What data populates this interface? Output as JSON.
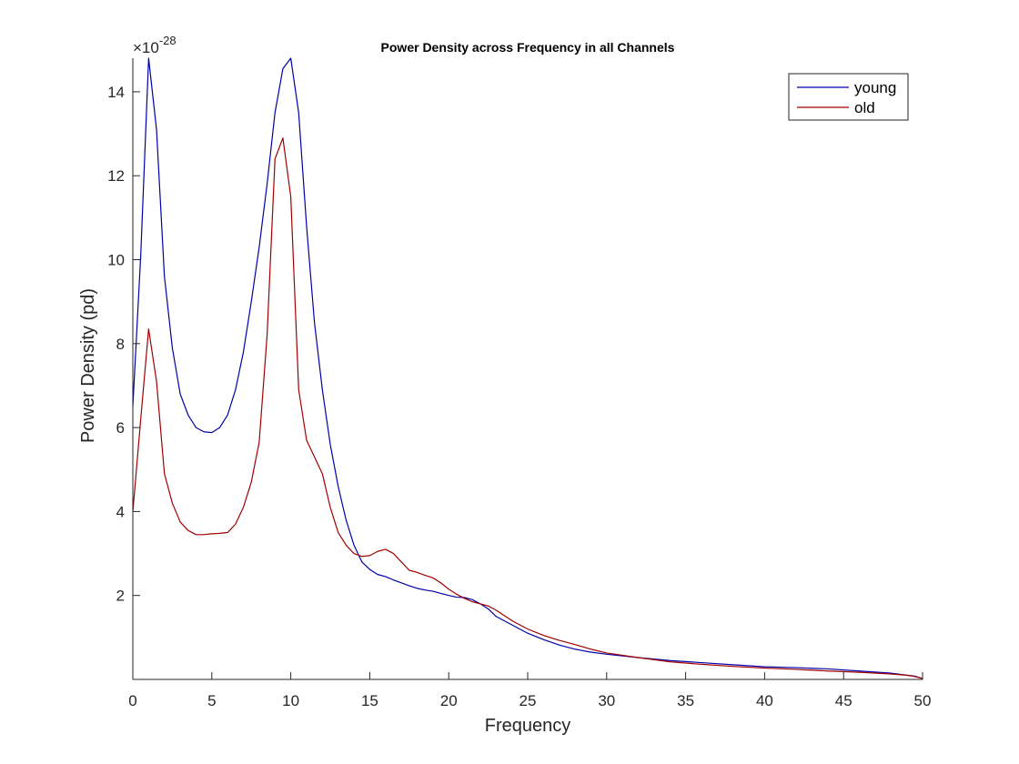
{
  "chart_data": {
    "type": "line",
    "title": "Power Density across Frequency in all Channels",
    "xlabel": "Frequency",
    "ylabel": "Power Density (pd)",
    "y_exponent_label": "×10",
    "y_exponent_power": "-28",
    "xlim": [
      0,
      50
    ],
    "ylim": [
      0,
      14.8
    ],
    "xticks": [
      0,
      5,
      10,
      15,
      20,
      25,
      30,
      35,
      40,
      45,
      50
    ],
    "yticks": [
      2,
      4,
      6,
      8,
      10,
      12,
      14
    ],
    "grid": false,
    "legend_location": "top-right",
    "series": [
      {
        "name": "young",
        "color": "#0000a8",
        "x": [
          0,
          0.5,
          1,
          1.5,
          2,
          2.5,
          3,
          3.5,
          4,
          4.5,
          5,
          5.5,
          6,
          6.5,
          7,
          7.5,
          8,
          8.5,
          9,
          9.5,
          10,
          10.5,
          11,
          11.5,
          12,
          12.5,
          13,
          13.5,
          14,
          14.5,
          15,
          15.5,
          16,
          16.5,
          17,
          17.5,
          18,
          18.5,
          19,
          19.5,
          20,
          20.5,
          21,
          21.5,
          22,
          22.5,
          23,
          24,
          25,
          26,
          27,
          28,
          29,
          30,
          32,
          34,
          36,
          38,
          40,
          42,
          44,
          46,
          48,
          49,
          49.5,
          50
        ],
        "y": [
          6.5,
          10.1,
          14.8,
          13.1,
          9.6,
          7.9,
          6.8,
          6.3,
          6.0,
          5.9,
          5.88,
          6.0,
          6.3,
          6.9,
          7.8,
          9.0,
          10.3,
          11.8,
          13.5,
          14.55,
          14.8,
          13.5,
          10.8,
          8.5,
          6.9,
          5.6,
          4.6,
          3.8,
          3.2,
          2.8,
          2.62,
          2.5,
          2.45,
          2.37,
          2.3,
          2.23,
          2.17,
          2.13,
          2.1,
          2.05,
          2.0,
          1.96,
          1.95,
          1.9,
          1.8,
          1.68,
          1.5,
          1.3,
          1.1,
          0.95,
          0.82,
          0.72,
          0.65,
          0.6,
          0.52,
          0.45,
          0.4,
          0.35,
          0.3,
          0.28,
          0.25,
          0.2,
          0.15,
          0.1,
          0.08,
          0.02
        ]
      },
      {
        "name": "old",
        "color": "#a00000",
        "x": [
          0,
          0.5,
          1,
          1.5,
          2,
          2.5,
          3,
          3.5,
          4,
          4.5,
          5,
          5.5,
          6,
          6.5,
          7,
          7.5,
          8,
          8.5,
          9,
          9.5,
          10,
          10.5,
          11,
          11.5,
          12,
          12.5,
          13,
          13.5,
          14,
          14.5,
          15,
          15.5,
          16,
          16.5,
          17,
          17.5,
          18,
          18.5,
          19,
          19.5,
          20,
          20.5,
          21,
          21.5,
          22,
          22.5,
          23,
          24,
          25,
          26,
          27,
          28,
          29,
          30,
          32,
          34,
          36,
          38,
          40,
          42,
          44,
          46,
          48,
          49,
          49.5,
          50
        ],
        "y": [
          4.0,
          6.2,
          8.35,
          7.1,
          4.9,
          4.2,
          3.75,
          3.55,
          3.45,
          3.45,
          3.47,
          3.48,
          3.5,
          3.7,
          4.1,
          4.7,
          5.65,
          8.2,
          12.4,
          12.9,
          11.5,
          6.9,
          5.7,
          5.3,
          4.9,
          4.1,
          3.5,
          3.2,
          3.0,
          2.93,
          2.95,
          3.05,
          3.1,
          3.0,
          2.8,
          2.6,
          2.55,
          2.48,
          2.42,
          2.3,
          2.15,
          2.03,
          1.93,
          1.85,
          1.8,
          1.75,
          1.65,
          1.4,
          1.2,
          1.05,
          0.93,
          0.83,
          0.72,
          0.63,
          0.52,
          0.42,
          0.36,
          0.31,
          0.27,
          0.24,
          0.2,
          0.17,
          0.13,
          0.1,
          0.07,
          0.02
        ]
      }
    ]
  }
}
